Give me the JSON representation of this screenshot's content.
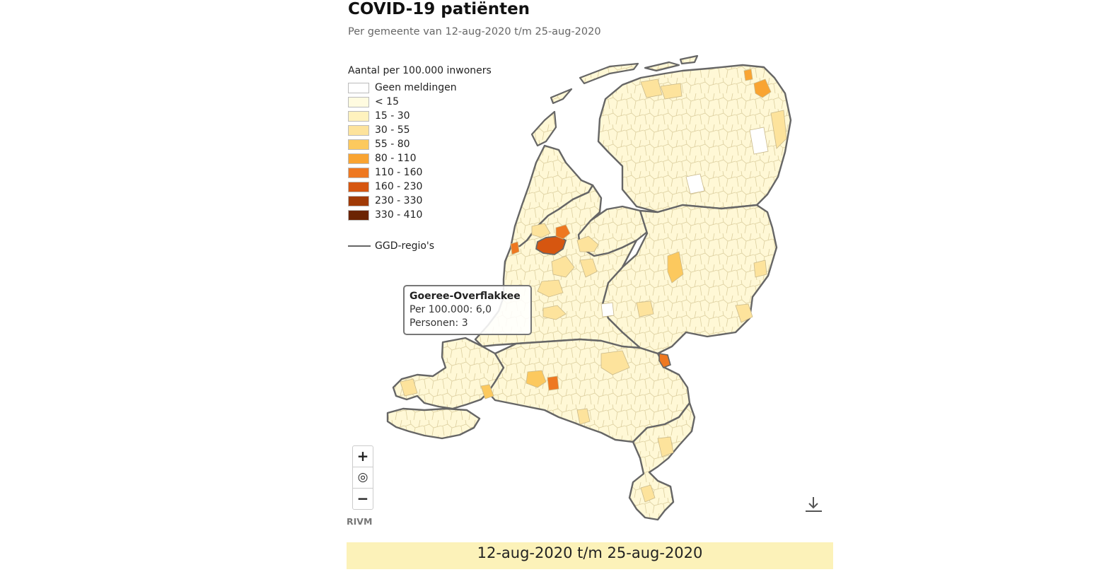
{
  "header": {
    "title": "COVID-19 patiënten",
    "subtitle": "Per gemeente van 12-aug-2020 t/m 25-aug-2020"
  },
  "legend": {
    "title": "Aantal per 100.000 inwoners",
    "classes": [
      {
        "label": "Geen meldingen",
        "color": "#ffffff"
      },
      {
        "label": "< 15",
        "color": "#fffbe0"
      },
      {
        "label": "15 - 30",
        "color": "#fff2be"
      },
      {
        "label": "30 - 55",
        "color": "#fde39c"
      },
      {
        "label": "55 - 80",
        "color": "#fcc95e"
      },
      {
        "label": "80 - 110",
        "color": "#f9a432"
      },
      {
        "label": "110 - 160",
        "color": "#ee7821"
      },
      {
        "label": "160 - 230",
        "color": "#d65610"
      },
      {
        "label": "230 - 330",
        "color": "#a03a06"
      },
      {
        "label": "330 - 410",
        "color": "#6b2403"
      }
    ],
    "ggd_label": "GGD-regio's"
  },
  "tooltip": {
    "title": "Goeree-Overflakkee",
    "line1": "Per 100.000: 6,0",
    "line2": "Personen: 3"
  },
  "zoom": {
    "zoom_in": "+",
    "reset": "◎",
    "zoom_out": "−"
  },
  "source": "RIVM",
  "date_bar": "12-aug-2020 t/m 25-aug-2020",
  "colors": {
    "border": "#666666",
    "municipality_border": "#d8cfa8",
    "date_bar_bg": "#fcf2b9"
  }
}
